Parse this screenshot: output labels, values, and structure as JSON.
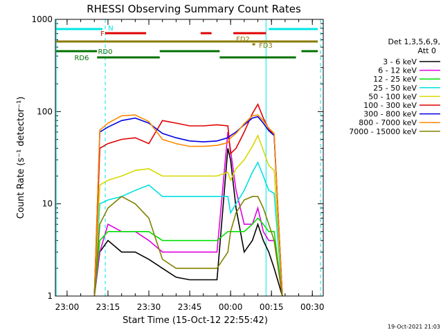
{
  "chart_data": {
    "type": "line",
    "title": "RHESSI Observing Summary Count Rates",
    "ylabel": "Count Rate (s⁻¹ detector⁻¹)",
    "xlabel": "Start Time (15-Oct-12 22:55:42)",
    "footer": "19-Oct-2021 21:03",
    "yscale": "log",
    "ylim": [
      1,
      1000
    ],
    "xlim": [
      "22:55:42",
      "00:34:00"
    ],
    "y_ticks": [
      "1",
      "10",
      "100",
      "1000"
    ],
    "x_ticks": [
      "23:00",
      "23:15",
      "23:30",
      "23:45",
      "00:00",
      "00:15",
      "00:30"
    ],
    "legend": {
      "title_line1": "Det 1,3,5,6,9,",
      "title_line2": "Att 0",
      "placement": "right"
    },
    "flags": [
      {
        "label": "N",
        "color": "#00e5e5",
        "segments": [
          [
            "22:56",
            "23:13"
          ],
          [
            "00:14",
            "00:32"
          ]
        ]
      },
      {
        "label": "F",
        "color": "#e00000",
        "segments": [
          [
            "23:14",
            "23:29"
          ],
          [
            "23:49",
            "23:53"
          ],
          [
            "00:01",
            "00:13"
          ]
        ]
      },
      {
        "label": "FD2",
        "color": "#8b7a00",
        "segments": [
          [
            "22:56",
            "00:32"
          ]
        ]
      },
      {
        "label": "FD3",
        "color": "#8b7a00",
        "segments": [
          [
            "00:08",
            "00:09"
          ]
        ]
      },
      {
        "label": "RD0",
        "color": "#007000",
        "segments": [
          [
            "22:56",
            "23:11"
          ],
          [
            "23:34",
            "23:56"
          ],
          [
            "00:26",
            "00:32"
          ]
        ]
      },
      {
        "label": "RD6",
        "color": "#007000",
        "segments": [
          [
            "23:11",
            "23:34"
          ],
          [
            "23:56",
            "00:24"
          ]
        ]
      }
    ],
    "x_markers_cyan": [
      "22:56",
      "23:14",
      "00:13",
      "00:33"
    ],
    "series": [
      {
        "name": "3 - 6 keV",
        "color": "#000000",
        "x": [
          "23:10",
          "23:12",
          "23:15",
          "23:20",
          "23:25",
          "23:30",
          "23:35",
          "23:40",
          "23:45",
          "23:50",
          "23:55",
          "23:59",
          "00:00",
          "00:02",
          "00:05",
          "00:08",
          "00:10",
          "00:12",
          "00:14",
          "00:16",
          "00:19"
        ],
        "y": [
          1,
          3,
          4,
          3,
          3,
          2.5,
          2,
          1.6,
          1.5,
          1.5,
          1.5,
          40,
          30,
          9,
          3,
          4,
          6,
          4,
          3,
          2,
          1
        ]
      },
      {
        "name": "6 - 12 keV",
        "color": "#e000e0",
        "x": [
          "23:10",
          "23:12",
          "23:15",
          "23:20",
          "23:25",
          "23:30",
          "23:35",
          "23:40",
          "23:45",
          "23:50",
          "23:55",
          "23:59",
          "00:00",
          "00:02",
          "00:05",
          "00:08",
          "00:10",
          "00:12",
          "00:14",
          "00:16",
          "00:19"
        ],
        "y": [
          1,
          3,
          6,
          5,
          5,
          4,
          3,
          3,
          3,
          3,
          3,
          60,
          38,
          14,
          6,
          6,
          9,
          5,
          4,
          4,
          1
        ]
      },
      {
        "name": "12 - 25 keV",
        "color": "#00e000",
        "x": [
          "23:10",
          "23:12",
          "23:15",
          "23:20",
          "23:25",
          "23:30",
          "23:35",
          "23:40",
          "23:45",
          "23:50",
          "23:55",
          "23:59",
          "00:00",
          "00:02",
          "00:05",
          "00:08",
          "00:10",
          "00:12",
          "00:14",
          "00:16",
          "00:19"
        ],
        "y": [
          1,
          4,
          5,
          5,
          5,
          5,
          4,
          4,
          4,
          4,
          4,
          5,
          5,
          5,
          5,
          6,
          7,
          6,
          5,
          5,
          1
        ]
      },
      {
        "name": "25 - 50 keV",
        "color": "#00e0e0",
        "x": [
          "23:10",
          "23:12",
          "23:15",
          "23:20",
          "23:25",
          "23:30",
          "23:35",
          "23:40",
          "23:45",
          "23:50",
          "23:55",
          "23:59",
          "00:00",
          "00:02",
          "00:05",
          "00:08",
          "00:10",
          "00:12",
          "00:14",
          "00:16",
          "00:19"
        ],
        "y": [
          1,
          10,
          11,
          12,
          14,
          16,
          12,
          12,
          12,
          12,
          12,
          12,
          8,
          10,
          14,
          22,
          28,
          20,
          14,
          13,
          1
        ]
      },
      {
        "name": "50 - 100 keV",
        "color": "#d8d800",
        "x": [
          "23:10",
          "23:12",
          "23:15",
          "23:20",
          "23:25",
          "23:30",
          "23:35",
          "23:40",
          "23:45",
          "23:50",
          "23:55",
          "23:59",
          "00:00",
          "00:02",
          "00:05",
          "00:08",
          "00:10",
          "00:12",
          "00:14",
          "00:16",
          "00:19"
        ],
        "y": [
          1,
          16,
          18,
          20,
          23,
          24,
          20,
          20,
          20,
          20,
          20,
          22,
          18,
          24,
          30,
          42,
          55,
          38,
          26,
          23,
          1
        ]
      },
      {
        "name": "100 - 300 keV",
        "color": "#e00000",
        "x": [
          "23:10",
          "23:12",
          "23:15",
          "23:20",
          "23:25",
          "23:30",
          "23:35",
          "23:40",
          "23:45",
          "23:50",
          "23:55",
          "23:59",
          "00:00",
          "00:02",
          "00:05",
          "00:08",
          "00:10",
          "00:12",
          "00:14",
          "00:16",
          "00:19"
        ],
        "y": [
          1,
          40,
          45,
          50,
          52,
          45,
          80,
          75,
          70,
          70,
          72,
          70,
          35,
          40,
          60,
          95,
          120,
          85,
          65,
          55,
          1
        ]
      },
      {
        "name": "300 - 800 keV",
        "color": "#0000e0",
        "x": [
          "23:10",
          "23:12",
          "23:15",
          "23:20",
          "23:25",
          "23:30",
          "23:35",
          "23:40",
          "23:45",
          "23:50",
          "23:55",
          "23:59",
          "00:00",
          "00:02",
          "00:05",
          "00:08",
          "00:10",
          "00:12",
          "00:14",
          "00:16",
          "00:19"
        ],
        "y": [
          1,
          60,
          68,
          80,
          85,
          75,
          58,
          52,
          48,
          47,
          48,
          52,
          55,
          60,
          72,
          85,
          88,
          75,
          62,
          55,
          1
        ]
      },
      {
        "name": "800 - 7000 keV",
        "color": "#ff8800",
        "x": [
          "23:10",
          "23:12",
          "23:15",
          "23:20",
          "23:25",
          "23:30",
          "23:35",
          "23:40",
          "23:45",
          "23:50",
          "23:55",
          "23:59",
          "00:00",
          "00:02",
          "00:05",
          "00:08",
          "00:10",
          "00:12",
          "00:14",
          "00:16",
          "00:19"
        ],
        "y": [
          1,
          63,
          75,
          90,
          92,
          78,
          50,
          45,
          42,
          42,
          43,
          46,
          52,
          58,
          74,
          90,
          92,
          80,
          66,
          58,
          1
        ]
      },
      {
        "name": "7000 - 15000 keV",
        "color": "#808000",
        "x": [
          "23:10",
          "23:12",
          "23:15",
          "23:20",
          "23:25",
          "23:30",
          "23:35",
          "23:40",
          "23:45",
          "23:50",
          "23:55",
          "23:59",
          "00:00",
          "00:02",
          "00:05",
          "00:08",
          "00:10",
          "00:12",
          "00:14",
          "00:16",
          "00:19"
        ],
        "y": [
          1,
          6,
          9,
          12,
          10,
          7,
          2.5,
          2,
          2,
          2,
          2,
          3,
          5,
          8,
          11,
          12,
          12,
          9,
          6,
          4,
          1
        ]
      }
    ]
  }
}
